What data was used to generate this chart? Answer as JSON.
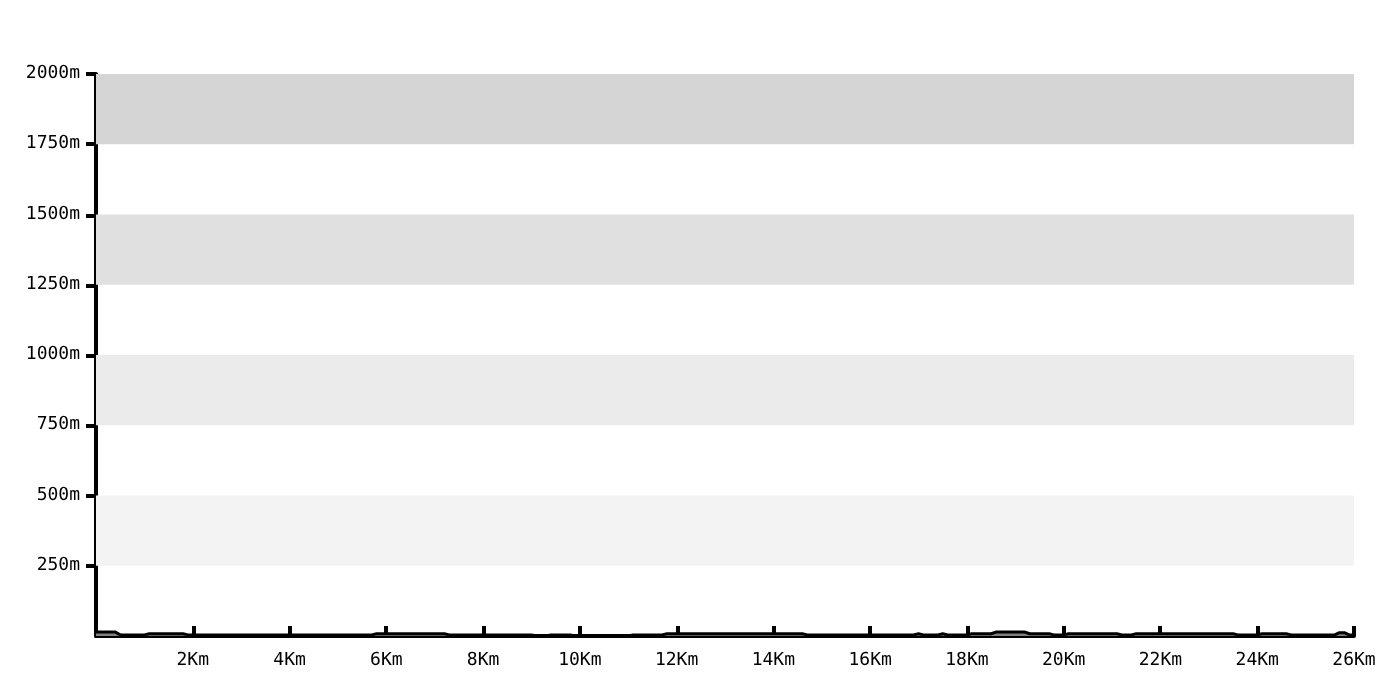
{
  "chart_data": {
    "type": "area",
    "color": "#808080",
    "bands": [
      {
        "axis": "y",
        "from": 250,
        "to": 500,
        "color": "#f3f3f3"
      },
      {
        "axis": "y",
        "from": 750,
        "to": 1000,
        "color": "#ebebeb"
      },
      {
        "axis": "y",
        "from": 1250,
        "to": 1500,
        "color": "#e0e0e0"
      },
      {
        "axis": "y",
        "from": 1750,
        "to": 2000,
        "color": "#d5d5d5"
      }
    ],
    "x": [
      0,
      0.4,
      0.5,
      1.0,
      1.1,
      1.8,
      1.9,
      5.7,
      5.8,
      7.2,
      7.3,
      9.0,
      9.1,
      9.3,
      9.4,
      9.8,
      9.9,
      11.0,
      11.1,
      11.7,
      11.8,
      14.6,
      14.7,
      16.9,
      17.0,
      17.1,
      17.4,
      17.5,
      17.6,
      18.0,
      18.1,
      18.5,
      18.6,
      19.2,
      19.3,
      19.7,
      19.8,
      20.0,
      20.1,
      21.1,
      21.2,
      21.4,
      21.5,
      23.5,
      23.6,
      24.0,
      24.1,
      24.6,
      24.7,
      25.6,
      25.7,
      25.8,
      25.9,
      26
    ],
    "values": [
      14,
      14,
      4,
      4,
      8,
      8,
      4,
      4,
      8,
      8,
      4,
      4,
      0,
      0,
      4,
      4,
      0,
      0,
      4,
      4,
      8,
      8,
      4,
      4,
      8,
      4,
      4,
      8,
      4,
      4,
      8,
      8,
      14,
      14,
      8,
      8,
      4,
      4,
      8,
      8,
      4,
      4,
      8,
      8,
      4,
      4,
      8,
      8,
      4,
      4,
      12,
      12,
      4,
      4
    ],
    "xlim": [
      0,
      26
    ],
    "xticks": [
      {
        "value": 2,
        "label": "2Km"
      },
      {
        "value": 4,
        "label": "4Km"
      },
      {
        "value": 6,
        "label": "6Km"
      },
      {
        "value": 8,
        "label": "8Km"
      },
      {
        "value": 10,
        "label": "10Km"
      },
      {
        "value": 12,
        "label": "12Km"
      },
      {
        "value": 14,
        "label": "14Km"
      },
      {
        "value": 16,
        "label": "16Km"
      },
      {
        "value": 18,
        "label": "18Km"
      },
      {
        "value": 20,
        "label": "20Km"
      },
      {
        "value": 22,
        "label": "22Km"
      },
      {
        "value": 24,
        "label": "24Km"
      },
      {
        "value": 26,
        "label": "26Km"
      }
    ],
    "ylim": [
      0,
      2000
    ],
    "yticks": [
      {
        "value": 250,
        "label": "250m"
      },
      {
        "value": 500,
        "label": "500m"
      },
      {
        "value": 750,
        "label": "750m"
      },
      {
        "value": 1000,
        "label": "1000m"
      },
      {
        "value": 1250,
        "label": "1250m"
      },
      {
        "value": 1500,
        "label": "1500m"
      },
      {
        "value": 1750,
        "label": "1750m"
      },
      {
        "value": 2000,
        "label": "2000m"
      }
    ],
    "marker": "none"
  }
}
